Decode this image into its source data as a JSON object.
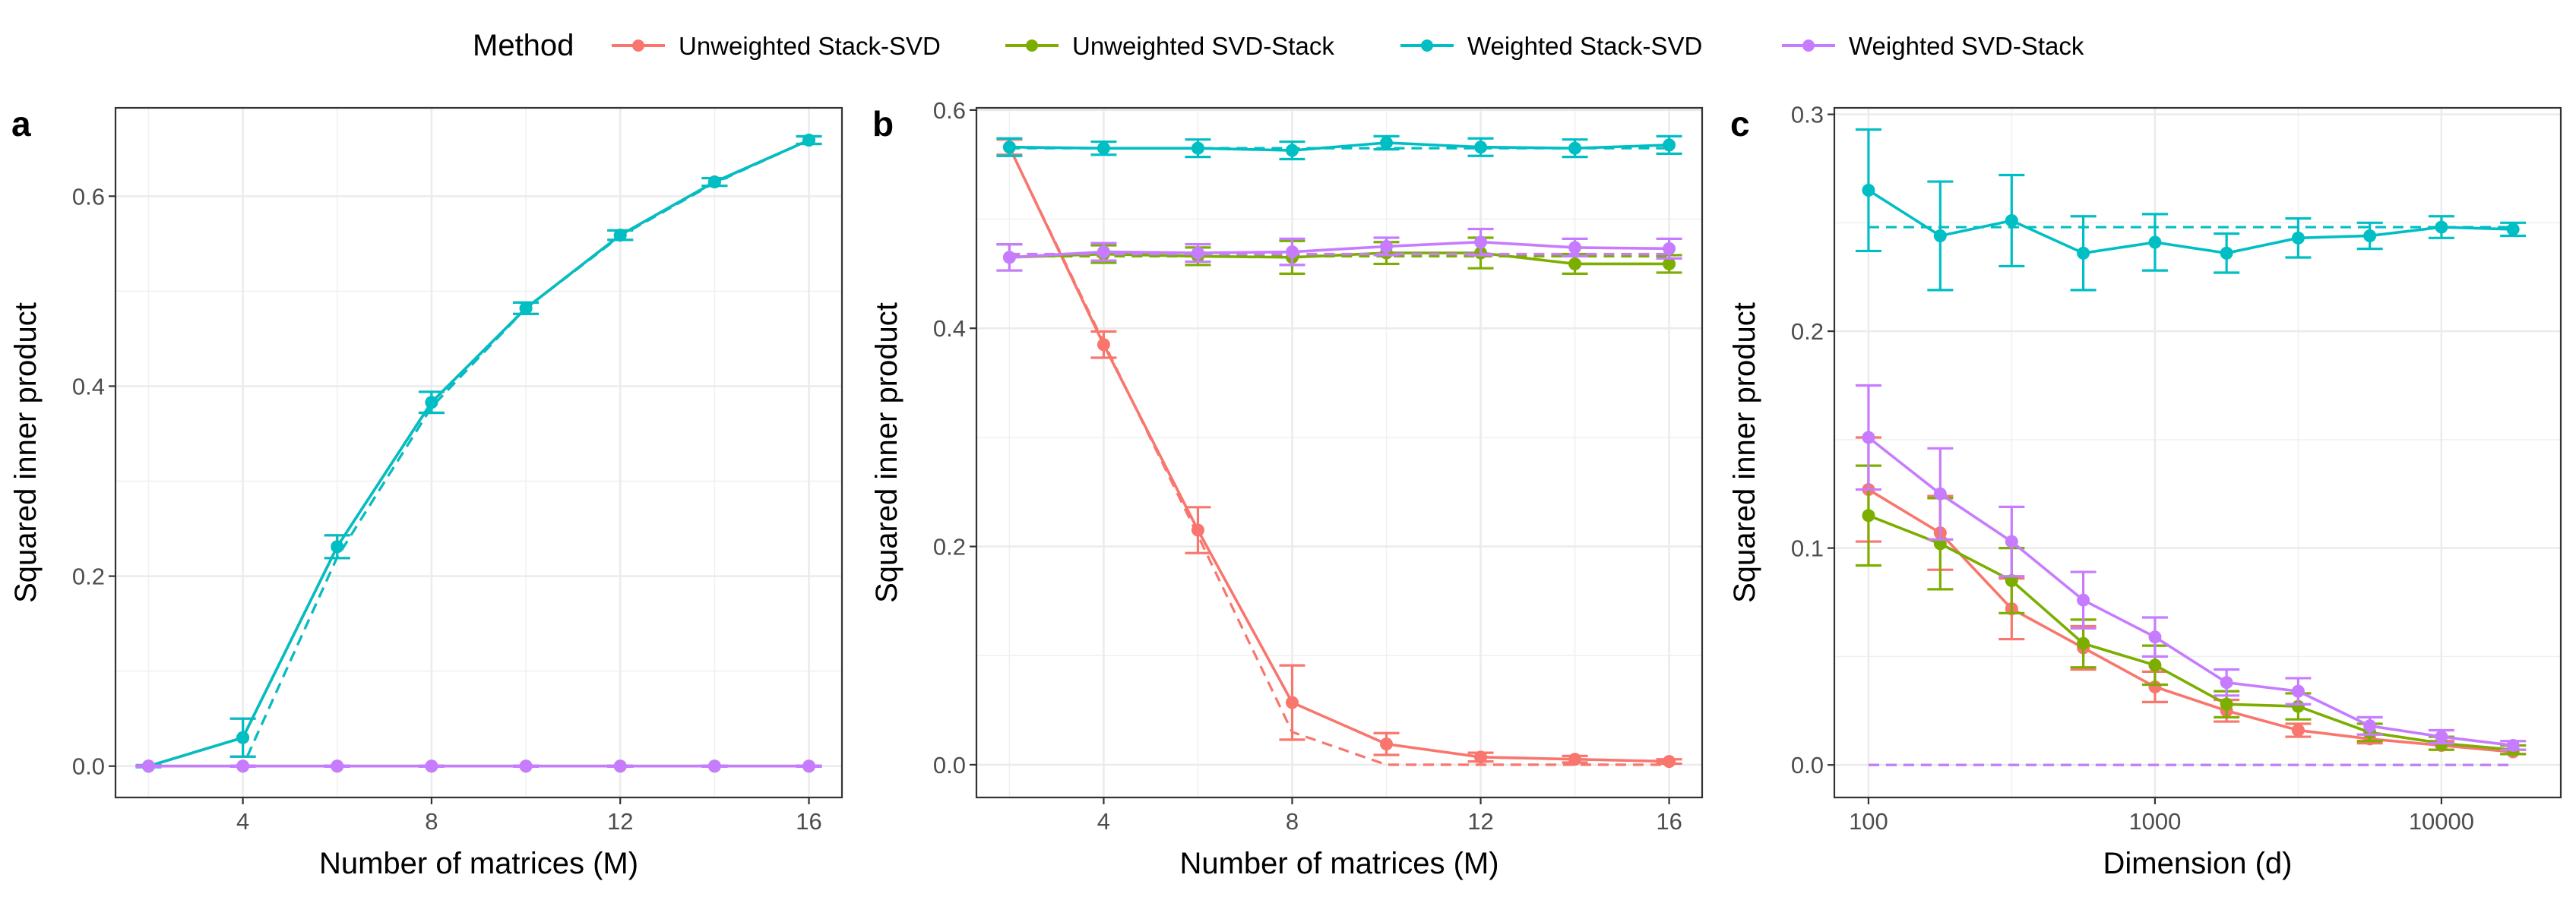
{
  "legend": {
    "title": "Method",
    "entries": [
      {
        "label": "Unweighted Stack-SVD",
        "color": "#F8766D"
      },
      {
        "label": "Unweighted SVD-Stack",
        "color": "#7CAE00"
      },
      {
        "label": "Weighted Stack-SVD",
        "color": "#00BFC4"
      },
      {
        "label": "Weighted SVD-Stack",
        "color": "#C77CFF"
      }
    ]
  },
  "chart_data": [
    {
      "type": "line",
      "panel_label": "a",
      "xlabel": "Number of matrices (M)",
      "ylabel": "Squared inner product",
      "x_scale": "linear",
      "xlim": [
        1.3,
        16.7
      ],
      "ylim": [
        -0.033,
        0.693
      ],
      "x_ticks": [
        4,
        8,
        12,
        16
      ],
      "x_tick_labels": [
        "4",
        "8",
        "12",
        "16"
      ],
      "y_ticks": [
        0.0,
        0.2,
        0.4,
        0.6
      ],
      "y_tick_labels": [
        "0.0",
        "0.2",
        "0.4",
        "0.6"
      ],
      "grid": true,
      "x": [
        2,
        4,
        6,
        8,
        10,
        12,
        14,
        16
      ],
      "series": [
        {
          "name": "Unweighted Stack-SVD",
          "color": "#F8766D",
          "values": [
            0.0,
            0.03,
            0.231,
            0.383,
            0.482,
            0.559,
            0.615,
            0.659
          ],
          "err": [
            0.001,
            0.02,
            0.012,
            0.011,
            0.006,
            0.005,
            0.004,
            0.004
          ],
          "theory": [
            0.0,
            0.0,
            0.22,
            0.378,
            0.482,
            0.558,
            0.614,
            0.659
          ]
        },
        {
          "name": "Unweighted SVD-Stack",
          "color": "#7CAE00",
          "values": [
            0.0,
            0.0,
            0.0,
            0.0,
            0.0,
            0.0,
            0.0,
            0.0
          ],
          "err": [
            0.0005,
            0.0005,
            0.0005,
            0.0005,
            0.0005,
            0.0005,
            0.0005,
            0.0005
          ],
          "theory": [
            0.0,
            0.0,
            0.0,
            0.0,
            0.0,
            0.0,
            0.0,
            0.0
          ]
        },
        {
          "name": "Weighted Stack-SVD",
          "color": "#00BFC4",
          "values": [
            0.0,
            0.03,
            0.231,
            0.383,
            0.482,
            0.559,
            0.615,
            0.659
          ],
          "err": [
            0.001,
            0.02,
            0.012,
            0.011,
            0.006,
            0.005,
            0.004,
            0.004
          ],
          "theory": [
            0.0,
            0.0,
            0.22,
            0.378,
            0.482,
            0.558,
            0.614,
            0.659
          ]
        },
        {
          "name": "Weighted SVD-Stack",
          "color": "#C77CFF",
          "values": [
            0.0,
            0.0,
            0.0,
            0.0,
            0.0,
            0.0,
            0.0,
            0.0
          ],
          "err": [
            0.0005,
            0.0005,
            0.0005,
            0.0005,
            0.0005,
            0.0005,
            0.0005,
            0.0005
          ],
          "theory": [
            0.0,
            0.0,
            0.0,
            0.0,
            0.0,
            0.0,
            0.0,
            0.0
          ]
        }
      ]
    },
    {
      "type": "line",
      "panel_label": "b",
      "xlabel": "Number of matrices (M)",
      "ylabel": "Squared inner product",
      "x_scale": "linear",
      "xlim": [
        1.3,
        16.7
      ],
      "ylim": [
        -0.03,
        0.602
      ],
      "x_ticks": [
        4,
        8,
        12,
        16
      ],
      "x_tick_labels": [
        "4",
        "8",
        "12",
        "16"
      ],
      "y_ticks": [
        0.0,
        0.2,
        0.4,
        0.6
      ],
      "y_tick_labels": [
        "0.0",
        "0.2",
        "0.4",
        "0.6"
      ],
      "grid": true,
      "x": [
        2,
        4,
        6,
        8,
        10,
        12,
        14,
        16
      ],
      "series": [
        {
          "name": "Unweighted Stack-SVD",
          "color": "#F8766D",
          "values": [
            0.566,
            0.385,
            0.215,
            0.057,
            0.019,
            0.007,
            0.005,
            0.003
          ],
          "err": [
            0.007,
            0.012,
            0.021,
            0.034,
            0.01,
            0.004,
            0.003,
            0.002
          ],
          "theory": [
            0.566,
            0.387,
            0.21,
            0.03,
            0.0,
            0.0,
            0.0,
            0.0
          ]
        },
        {
          "name": "Unweighted SVD-Stack",
          "color": "#7CAE00",
          "values": [
            0.465,
            0.468,
            0.466,
            0.465,
            0.469,
            0.469,
            0.459,
            0.459
          ],
          "err": [
            0.012,
            0.008,
            0.008,
            0.015,
            0.01,
            0.014,
            0.009,
            0.008
          ],
          "theory": [
            0.466,
            0.466,
            0.466,
            0.466,
            0.466,
            0.466,
            0.466,
            0.466
          ]
        },
        {
          "name": "Weighted Stack-SVD",
          "color": "#00BFC4",
          "values": [
            0.566,
            0.565,
            0.565,
            0.563,
            0.57,
            0.566,
            0.565,
            0.568
          ],
          "err": [
            0.008,
            0.006,
            0.008,
            0.008,
            0.006,
            0.008,
            0.008,
            0.008
          ],
          "theory": [
            0.565,
            0.565,
            0.565,
            0.565,
            0.565,
            0.565,
            0.565,
            0.565
          ]
        },
        {
          "name": "Weighted SVD-Stack",
          "color": "#C77CFF",
          "values": [
            0.465,
            0.47,
            0.469,
            0.47,
            0.475,
            0.479,
            0.474,
            0.473
          ],
          "err": [
            0.012,
            0.008,
            0.008,
            0.012,
            0.008,
            0.012,
            0.008,
            0.009
          ],
          "theory": [
            0.468,
            0.468,
            0.468,
            0.468,
            0.468,
            0.468,
            0.468,
            0.468
          ]
        }
      ]
    },
    {
      "type": "line",
      "panel_label": "c",
      "xlabel": "Dimension (d)",
      "ylabel": "Squared inner product",
      "x_scale": "log10",
      "xlim": [
        76,
        26100
      ],
      "ylim": [
        -0.015,
        0.303
      ],
      "x_ticks": [
        100,
        1000,
        10000
      ],
      "x_tick_labels": [
        "100",
        "1000",
        "10000"
      ],
      "y_ticks": [
        0.0,
        0.1,
        0.2,
        0.3
      ],
      "y_tick_labels": [
        "0.0",
        "0.1",
        "0.2",
        "0.3"
      ],
      "grid": true,
      "x": [
        100,
        178,
        316,
        562,
        1000,
        1778,
        3162,
        5623,
        10000,
        17783
      ],
      "series": [
        {
          "name": "Unweighted Stack-SVD",
          "color": "#F8766D",
          "values": [
            0.127,
            0.107,
            0.072,
            0.054,
            0.036,
            0.025,
            0.016,
            0.012,
            0.009,
            0.006
          ],
          "err": [
            0.024,
            0.017,
            0.014,
            0.01,
            0.007,
            0.005,
            0.003,
            0.002,
            0.002,
            0.001
          ],
          "theory": null
        },
        {
          "name": "Unweighted SVD-Stack",
          "color": "#7CAE00",
          "values": [
            0.115,
            0.102,
            0.085,
            0.056,
            0.046,
            0.028,
            0.027,
            0.015,
            0.01,
            0.007
          ],
          "err": [
            0.023,
            0.021,
            0.015,
            0.011,
            0.009,
            0.006,
            0.006,
            0.004,
            0.003,
            0.002
          ],
          "theory": [
            0.0,
            0.0,
            0.0,
            0.0,
            0.0,
            0.0,
            0.0,
            0.0,
            0.0,
            0.0
          ]
        },
        {
          "name": "Weighted Stack-SVD",
          "color": "#00BFC4",
          "values": [
            0.265,
            0.244,
            0.251,
            0.236,
            0.241,
            0.236,
            0.243,
            0.244,
            0.248,
            0.247
          ],
          "err": [
            0.028,
            0.025,
            0.021,
            0.017,
            0.013,
            0.009,
            0.009,
            0.006,
            0.005,
            0.003
          ],
          "theory": [
            0.248,
            0.248,
            0.248,
            0.248,
            0.248,
            0.248,
            0.248,
            0.248,
            0.248,
            0.248
          ]
        },
        {
          "name": "Weighted SVD-Stack",
          "color": "#C77CFF",
          "values": [
            0.151,
            0.125,
            0.103,
            0.076,
            0.059,
            0.038,
            0.034,
            0.018,
            0.013,
            0.009
          ],
          "err": [
            0.024,
            0.021,
            0.016,
            0.013,
            0.009,
            0.006,
            0.006,
            0.004,
            0.003,
            0.002
          ],
          "theory": [
            0.0,
            0.0,
            0.0,
            0.0,
            0.0,
            0.0,
            0.0,
            0.0,
            0.0,
            0.0
          ]
        }
      ]
    }
  ]
}
